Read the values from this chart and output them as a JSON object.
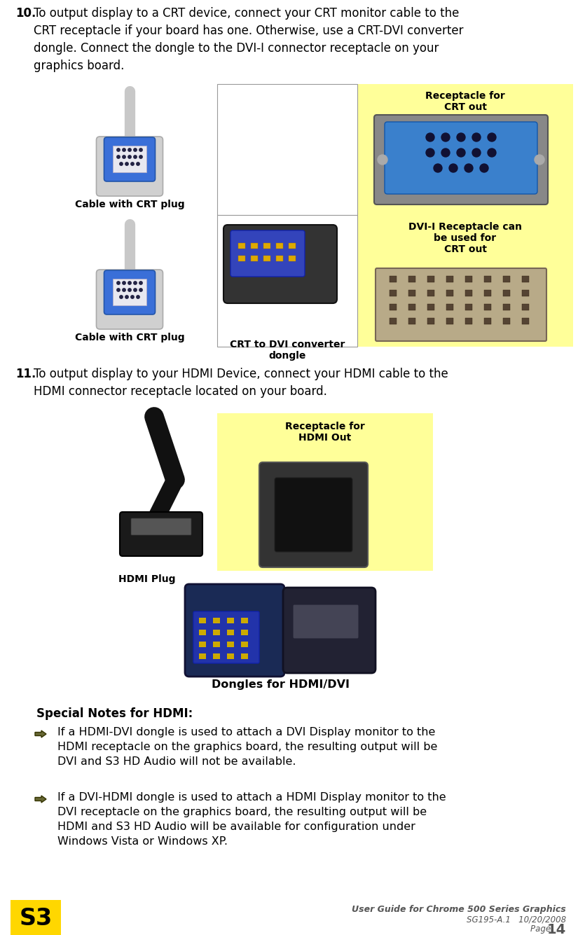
{
  "page_width": 8.25,
  "page_height": 13.35,
  "dpi": 100,
  "bg": "#ffffff",
  "yellow": "#FFFF99",
  "black": "#000000",
  "gray_text": "#555555",
  "sec10_num": "10.",
  "sec10_body": "To output display to a CRT device, connect your CRT monitor cable to the\nCRT receptacle if your board has one. Otherwise, use a CRT-DVI converter\ndongle. Connect the dongle to the DVI-I connector receptacle on your\ngraphics board.",
  "label_cable_crt1": "Cable with CRT plug",
  "label_receptacle_crt": "Receptacle for\nCRT out",
  "label_cable_crt2": "Cable with CRT plug",
  "label_dongle": "CRT to DVI converter\ndongle",
  "label_dvi_rec": "DVI-I Receptacle can\nbe used for\nCRT out",
  "sec11_num": "11.",
  "sec11_body": "To output display to your HDMI Device, connect your HDMI cable to the\nHDMI connector receptacle located on your board.",
  "label_hdmi_plug": "HDMI Plug",
  "label_receptacle_hdmi": "Receptacle for\nHDMI Out",
  "label_dongles": "Dongles for HDMI/DVI",
  "notes_title": "Special Notes for HDMI:",
  "bullet1_line1": "If a HDMI-DVI dongle is used to attach a DVI Display monitor to the",
  "bullet1_line2": "HDMI receptacle on the graphics board, the resulting output will be",
  "bullet1_line3": "DVI and S3 HD Audio will not be available.",
  "bullet2_line1": "If a DVI-HDMI dongle is used to attach a HDMI Display monitor to the",
  "bullet2_line2": "DVI receptacle on the graphics board, the resulting output will be",
  "bullet2_line3": "HDMI and S3 HD Audio will be available for configuration under",
  "bullet2_line4": "Windows Vista or Windows XP.",
  "footer_title": "User Guide for Chrome 500 Series Graphics",
  "footer_sub": "SG195-A.1   10/20/2008",
  "footer_page_pre": "Page ",
  "footer_page_num": "14",
  "s3_yellow": "#FFD700",
  "s3_orange": "#FF8C00"
}
